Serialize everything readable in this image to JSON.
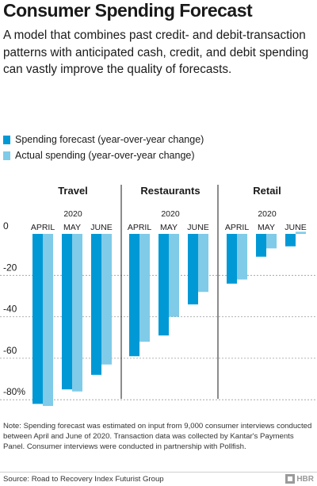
{
  "header": {
    "title": "Consumer Spending Forecast",
    "subtitle": "A model that combines past credit- and debit-transaction patterns with anticipated cash, credit, and debit spending can vastly improve the quality of forecasts."
  },
  "legend": [
    {
      "label": "Spending forecast (year-over-year change)",
      "color": "#0099d6"
    },
    {
      "label": "Actual spending (year-over-year change)",
      "color": "#7fcbe8"
    }
  ],
  "chart_data": {
    "type": "bar",
    "year_label": "2020",
    "categories": [
      "APRIL",
      "MAY",
      "JUNE"
    ],
    "panels": [
      {
        "name": "Travel",
        "series": [
          {
            "name": "Spending forecast (year-over-year change)",
            "values": [
              -82,
              -75,
              -68
            ]
          },
          {
            "name": "Actual spending (year-over-year change)",
            "values": [
              -83,
              -76,
              -63
            ]
          }
        ]
      },
      {
        "name": "Restaurants",
        "series": [
          {
            "name": "Spending forecast (year-over-year change)",
            "values": [
              -59,
              -49,
              -34
            ]
          },
          {
            "name": "Actual spending (year-over-year change)",
            "values": [
              -52,
              -40,
              -28
            ]
          }
        ]
      },
      {
        "name": "Retail",
        "series": [
          {
            "name": "Spending forecast (year-over-year change)",
            "values": [
              -24,
              -11,
              -6
            ]
          },
          {
            "name": "Actual spending (year-over-year change)",
            "values": [
              -22,
              -7,
              1
            ]
          }
        ]
      }
    ],
    "y_ticks": [
      "0",
      "-20",
      "-40",
      "-60",
      "-80%"
    ],
    "y_tick_values": [
      0,
      -20,
      -40,
      -60,
      -80
    ],
    "ylim": [
      -85,
      2
    ],
    "colors": {
      "forecast": "#0099d6",
      "actual": "#7fcbe8"
    },
    "grid": "dashed horizontal",
    "legend_position": "top-left"
  },
  "footer": {
    "note": "Note: Spending forecast was estimated on input from 9,000 consumer interviews conducted between April and June of 2020. Transaction data was collected by Kantar's Payments Panel. Consumer interviews were conducted in partnership with Pollfish.",
    "source": "Source: Road to Recovery Index Futurist Group",
    "logo": "HBR"
  }
}
